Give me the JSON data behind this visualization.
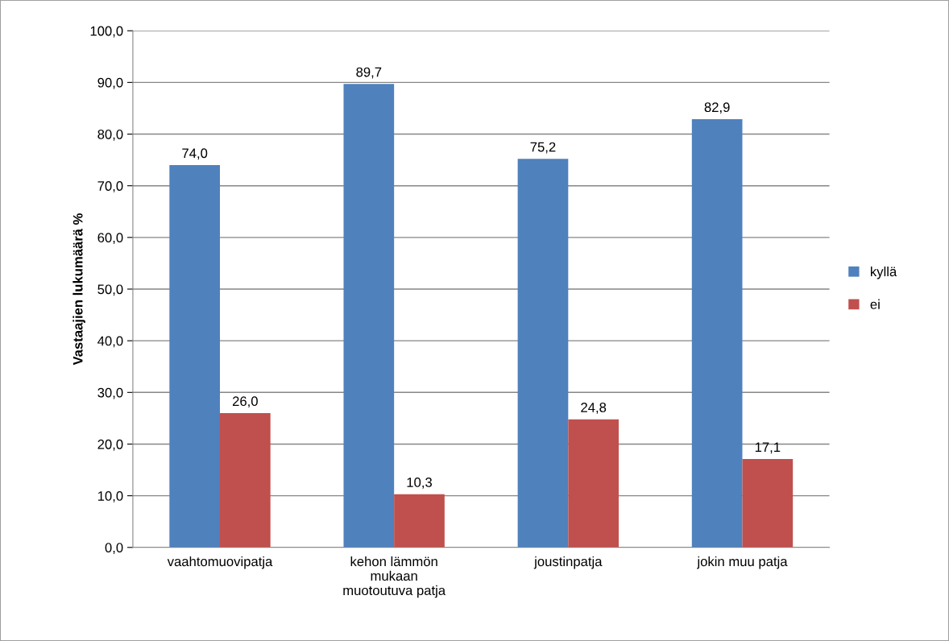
{
  "chart_data": {
    "type": "bar",
    "ylabel": "Vastaajien lukumäärä %",
    "categories": [
      "vaahtomuovipatja",
      "kehon lämmön\nmukaan\nmuotoutuva patja",
      "joustinpatja",
      "jokin muu patja"
    ],
    "series": [
      {
        "name": "kyllä",
        "color": "#4f81bd",
        "values": [
          74.0,
          89.7,
          75.2,
          82.9
        ],
        "value_labels": [
          "74,0",
          "89,7",
          "75,2",
          "82,9"
        ]
      },
      {
        "name": "ei",
        "color": "#c0504d",
        "values": [
          26.0,
          10.3,
          24.8,
          17.1
        ],
        "value_labels": [
          "26,0",
          "10,3",
          "24,8",
          "17,1"
        ]
      }
    ],
    "ylim": [
      0,
      100
    ],
    "yticks": [
      {
        "value": 0,
        "label": "0,0"
      },
      {
        "value": 10,
        "label": "10,0"
      },
      {
        "value": 20,
        "label": "20,0"
      },
      {
        "value": 30,
        "label": "30,0"
      },
      {
        "value": 40,
        "label": "40,0"
      },
      {
        "value": 50,
        "label": "50,0"
      },
      {
        "value": 60,
        "label": "60,0"
      },
      {
        "value": 70,
        "label": "70,0"
      },
      {
        "value": 80,
        "label": "80,0"
      },
      {
        "value": 90,
        "label": "90,0"
      },
      {
        "value": 100,
        "label": "100,0"
      }
    ],
    "grid": "y",
    "legend": "right"
  }
}
